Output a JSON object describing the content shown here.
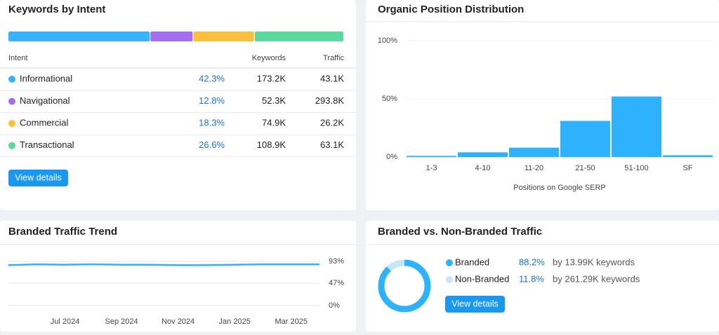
{
  "intent": {
    "title": "Keywords by Intent",
    "headers": [
      "Intent",
      "Keywords",
      "Traffic"
    ],
    "rows": [
      {
        "name": "Informational",
        "share": 42.3,
        "share_label": "42.3%",
        "keywords": "173.2K",
        "traffic": "43.1K",
        "color": "#35b3fc"
      },
      {
        "name": "Navigational",
        "share": 12.8,
        "share_label": "12.8%",
        "keywords": "52.3K",
        "traffic": "293.8K",
        "color": "#a56bf0"
      },
      {
        "name": "Commercial",
        "share": 18.3,
        "share_label": "18.3%",
        "keywords": "74.9K",
        "traffic": "26.2K",
        "color": "#fbbf3c"
      },
      {
        "name": "Transactional",
        "share": 26.6,
        "share_label": "26.6%",
        "keywords": "108.9K",
        "traffic": "63.1K",
        "color": "#59d99d"
      }
    ],
    "button": "View details"
  },
  "positions": {
    "type": "bar",
    "title": "Organic Position Distribution",
    "categories": [
      "1-3",
      "4-10",
      "11-20",
      "21-50",
      "51-100",
      "SF"
    ],
    "values": [
      1,
      4,
      8,
      31,
      52,
      1.5
    ],
    "color": "#2fb2fd",
    "ylim": [
      0,
      100
    ],
    "yticks": [
      {
        "value": 0,
        "label": "0%"
      },
      {
        "value": 50,
        "label": "50%"
      },
      {
        "value": 100,
        "label": "100%"
      }
    ],
    "x_label": "Positions on Google SERP"
  },
  "trend": {
    "type": "line",
    "title": "Branded Traffic Trend",
    "categories": [
      null,
      null,
      "Jul 2024",
      null,
      "Sep 2024",
      null,
      "Nov 2024",
      null,
      "Jan 2025",
      null,
      "Mar 2025",
      null
    ],
    "values": [
      85,
      87,
      86,
      87,
      86,
      86,
      85,
      85,
      86,
      87,
      87,
      87
    ],
    "color": "#2fb2fd",
    "ylim": [
      0,
      93
    ],
    "yticks": [
      {
        "value": 0,
        "label": "0%"
      },
      {
        "value": 47,
        "label": "47%"
      },
      {
        "value": 93,
        "label": "93%"
      }
    ],
    "grid": true
  },
  "branded": {
    "type": "pie",
    "title": "Branded vs. Non-Branded Traffic",
    "items": [
      {
        "name": "Branded",
        "value": 88.2,
        "value_label": "88.2%",
        "keywords": "by 13.99K keywords",
        "color": "#2fb2fd"
      },
      {
        "name": "Non-Branded",
        "value": 11.8,
        "value_label": "11.8%",
        "keywords": "by 261.29K keywords",
        "color": "#c6e6fb"
      }
    ],
    "button": "View details"
  }
}
